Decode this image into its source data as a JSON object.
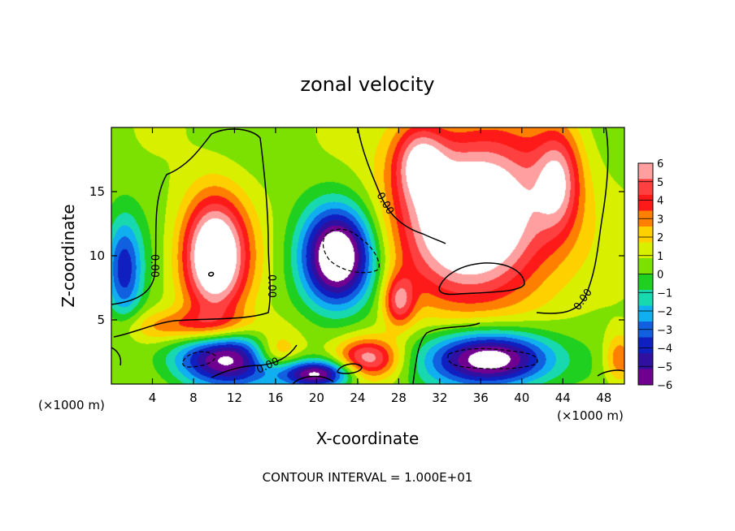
{
  "chart_data": {
    "type": "heatmap",
    "title": "zonal velocity",
    "xlabel": "X-coordinate",
    "ylabel": "Z-coordinate",
    "x_unit_left": "(×1000 m)",
    "x_unit_right": "(×1000 m)",
    "xlim": [
      0,
      50
    ],
    "ylim": [
      0,
      20
    ],
    "x_ticks": [
      4,
      8,
      12,
      16,
      20,
      24,
      28,
      32,
      36,
      40,
      44,
      48
    ],
    "y_ticks": [
      5,
      10,
      15
    ],
    "colorbar_levels": [
      6,
      5,
      4,
      3,
      2,
      1,
      0,
      -1,
      -2,
      -3,
      -4,
      -5,
      -6
    ],
    "colorbar_colors": [
      "#ff9f9f",
      "#ff4040",
      "#ff1a1a",
      "#ff8000",
      "#ffd000",
      "#d8f000",
      "#7ce000",
      "#20d020",
      "#18d8b0",
      "#10b0f0",
      "#1060e0",
      "#1020c0",
      "#3010a0",
      "#700090"
    ],
    "blobs": [
      {
        "x": 10,
        "z": 10,
        "rx": 3.2,
        "rz": 4.6,
        "u": 8
      },
      {
        "x": 35.5,
        "z": 13,
        "rx": 7.5,
        "rz": 6.5,
        "u": 8.5
      },
      {
        "x": 30,
        "z": 17.5,
        "rx": 2.5,
        "rz": 3,
        "u": 4
      },
      {
        "x": 43.5,
        "z": 16,
        "rx": 2.2,
        "rz": 4,
        "u": 4
      },
      {
        "x": 22,
        "z": 10,
        "rx": 3.5,
        "rz": 3.8,
        "u": -8.5
      },
      {
        "x": 37,
        "z": 2,
        "rx": 6,
        "rz": 2.2,
        "u": -8
      },
      {
        "x": 11,
        "z": 2,
        "rx": 5,
        "rz": 2.2,
        "u": -7
      },
      {
        "x": 1.2,
        "z": 9,
        "rx": 1.8,
        "rz": 4,
        "u": -4.5
      },
      {
        "x": 16,
        "z": 2.5,
        "rx": 2.5,
        "rz": 1.5,
        "u": 3.5
      },
      {
        "x": 20,
        "z": 0.8,
        "rx": 3.5,
        "rz": 1.1,
        "u": -7
      },
      {
        "x": 25,
        "z": 2,
        "rx": 3,
        "rz": 1.6,
        "u": 5
      },
      {
        "x": 8,
        "z": 4.5,
        "rx": 7,
        "rz": 1.3,
        "u": 3
      },
      {
        "x": 28,
        "z": 6.5,
        "rx": 1.5,
        "rz": 2,
        "u": 4
      },
      {
        "x": 49.5,
        "z": 2,
        "rx": 1.5,
        "rz": 2,
        "u": 3
      }
    ],
    "contour_labels": [
      "0.00",
      "0.00",
      "0.00",
      "0.00",
      "0.00"
    ],
    "footer": "CONTOUR INTERVAL = 1.000E+01"
  }
}
